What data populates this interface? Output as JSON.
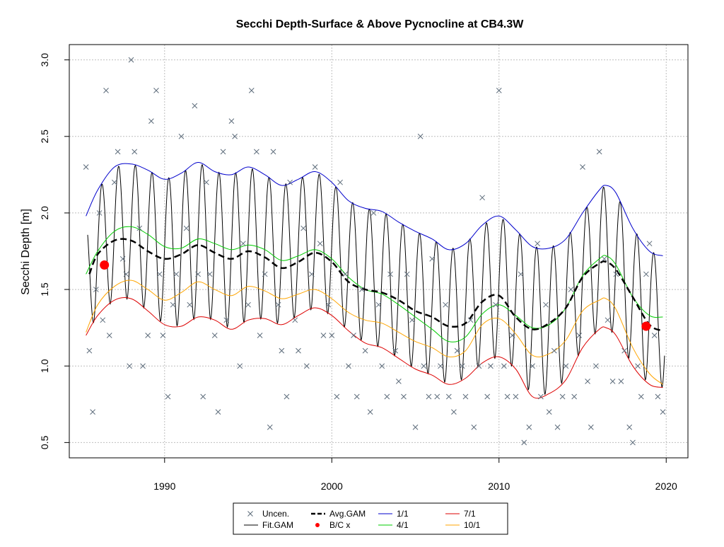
{
  "chart_data": {
    "type": "line",
    "title": "Secchi Depth-Surface & Above Pycnocline at CB4.3W",
    "xlabel": "",
    "ylabel": "Secchi Depth [m]",
    "xlim": [
      1984.3,
      2021.3
    ],
    "ylim": [
      0.4,
      3.1
    ],
    "grid": true,
    "legend_position": "bottom-center",
    "x_ticks": [
      {
        "value": 1990,
        "label": "1990"
      },
      {
        "value": 2000,
        "label": "2000"
      },
      {
        "value": 2010,
        "label": "2010"
      },
      {
        "value": 2020,
        "label": "2020"
      }
    ],
    "y_ticks": [
      {
        "value": 0.5,
        "label": "0.5"
      },
      {
        "value": 1.0,
        "label": "1.0"
      },
      {
        "value": 1.5,
        "label": "1.5"
      },
      {
        "value": 2.0,
        "label": "2.0"
      },
      {
        "value": 2.5,
        "label": "2.5"
      },
      {
        "value": 3.0,
        "label": "3.0"
      }
    ],
    "legend": [
      {
        "label": "Uncen.",
        "key": "uncen"
      },
      {
        "label": "Fit.GAM",
        "key": "fit"
      },
      {
        "label": "Avg.GAM",
        "key": "avg"
      },
      {
        "label": "B/C x",
        "key": "bc"
      },
      {
        "label": "1/1",
        "key": "c1"
      },
      {
        "label": "4/1",
        "key": "c4"
      },
      {
        "label": "7/1",
        "key": "c7"
      },
      {
        "label": "10/1",
        "key": "c10"
      }
    ],
    "colors": {
      "uncen": "#5c6b7a",
      "fit": "#000000",
      "avg": "#000000",
      "bc": "#ff0000",
      "c1": "#0000cc",
      "c4": "#00cc00",
      "c7": "#dd0000",
      "c10": "#ffa500",
      "grid": "#bebebe"
    },
    "series": [
      {
        "name": "1/1",
        "key": "c1",
        "x": [
          1985.3,
          1986,
          1987,
          1988,
          1989,
          1990,
          1991,
          1992,
          1993,
          1994,
          1995,
          1996,
          1997,
          1998,
          1999,
          2000,
          2001,
          2002,
          2003,
          2004,
          2005,
          2006,
          2007,
          2008,
          2009,
          2010,
          2011,
          2012,
          2013,
          2014,
          2015,
          2016,
          2016.4,
          2017,
          2018,
          2019,
          2019.8
        ],
        "y": [
          1.98,
          2.15,
          2.3,
          2.32,
          2.28,
          2.22,
          2.26,
          2.33,
          2.27,
          2.25,
          2.3,
          2.25,
          2.18,
          2.22,
          2.27,
          2.2,
          2.08,
          2.03,
          2.01,
          1.94,
          1.88,
          1.83,
          1.76,
          1.8,
          1.92,
          1.98,
          1.89,
          1.78,
          1.77,
          1.83,
          2.0,
          2.15,
          2.18,
          2.13,
          1.9,
          1.75,
          1.72
        ]
      },
      {
        "name": "4/1",
        "key": "c4",
        "x": [
          1985.3,
          1986,
          1987,
          1988,
          1989,
          1990,
          1991,
          1992,
          1993,
          1994,
          1995,
          1996,
          1997,
          1998,
          1999,
          2000,
          2001,
          2002,
          2003,
          2004,
          2005,
          2006,
          2007,
          2008,
          2009,
          2010,
          2011,
          2012,
          2013,
          2014,
          2015,
          2016,
          2016.4,
          2017,
          2018,
          2019,
          2019.8
        ],
        "y": [
          1.6,
          1.75,
          1.88,
          1.91,
          1.86,
          1.78,
          1.77,
          1.83,
          1.8,
          1.76,
          1.79,
          1.76,
          1.69,
          1.72,
          1.76,
          1.7,
          1.58,
          1.5,
          1.47,
          1.4,
          1.32,
          1.24,
          1.16,
          1.19,
          1.34,
          1.4,
          1.33,
          1.25,
          1.27,
          1.38,
          1.59,
          1.7,
          1.72,
          1.66,
          1.45,
          1.33,
          1.32
        ]
      },
      {
        "name": "7/1",
        "key": "c7",
        "x": [
          1985.3,
          1986,
          1987,
          1988,
          1989,
          1990,
          1991,
          1992,
          1993,
          1994,
          1995,
          1996,
          1997,
          1998,
          1999,
          2000,
          2001,
          2002,
          2003,
          2004,
          2005,
          2006,
          2007,
          2008,
          2009,
          2010,
          2011,
          2012,
          2013,
          2014,
          2015,
          2016,
          2016.4,
          2017,
          2018,
          2019,
          2019.8
        ],
        "y": [
          1.2,
          1.33,
          1.43,
          1.44,
          1.36,
          1.27,
          1.26,
          1.32,
          1.3,
          1.24,
          1.3,
          1.31,
          1.27,
          1.33,
          1.38,
          1.33,
          1.23,
          1.15,
          1.12,
          1.05,
          0.98,
          0.94,
          0.88,
          0.92,
          1.02,
          1.06,
          0.98,
          0.8,
          0.82,
          0.91,
          1.12,
          1.24,
          1.25,
          1.2,
          1.0,
          0.88,
          0.86
        ]
      },
      {
        "name": "10/1",
        "key": "c10",
        "x": [
          1985.3,
          1986,
          1987,
          1988,
          1989,
          1990,
          1991,
          1992,
          1993,
          1994,
          1995,
          1996,
          1997,
          1998,
          1999,
          2000,
          2001,
          2002,
          2003,
          2004,
          2005,
          2006,
          2007,
          2008,
          2009,
          2010,
          2011,
          2012,
          2013,
          2014,
          2015,
          2016,
          2016.4,
          2017,
          2018,
          2019,
          2019.8
        ],
        "y": [
          1.22,
          1.4,
          1.52,
          1.56,
          1.5,
          1.43,
          1.48,
          1.55,
          1.5,
          1.46,
          1.52,
          1.49,
          1.44,
          1.47,
          1.5,
          1.44,
          1.35,
          1.3,
          1.28,
          1.22,
          1.16,
          1.12,
          1.06,
          1.1,
          1.27,
          1.31,
          1.21,
          1.07,
          1.08,
          1.17,
          1.36,
          1.43,
          1.44,
          1.37,
          1.12,
          0.95,
          0.88
        ]
      },
      {
        "name": "Avg.GAM",
        "key": "avg",
        "x": [
          1985.5,
          1986,
          1987,
          1988,
          1989,
          1990,
          1991,
          1992,
          1993,
          1994,
          1995,
          1996,
          1997,
          1998,
          1999,
          2000,
          2001,
          2002,
          2003,
          2004,
          2005,
          2006,
          2007,
          2008,
          2009,
          2010,
          2011,
          2012,
          2013,
          2014,
          2015,
          2016,
          2016.4,
          2017,
          2018,
          2019,
          2019.8
        ],
        "y": [
          1.6,
          1.73,
          1.82,
          1.82,
          1.75,
          1.7,
          1.73,
          1.79,
          1.74,
          1.7,
          1.75,
          1.71,
          1.64,
          1.68,
          1.74,
          1.68,
          1.55,
          1.5,
          1.48,
          1.43,
          1.36,
          1.32,
          1.26,
          1.28,
          1.42,
          1.46,
          1.32,
          1.24,
          1.28,
          1.38,
          1.58,
          1.67,
          1.68,
          1.63,
          1.45,
          1.27,
          1.23
        ]
      }
    ],
    "fit_gam": {
      "name": "Fit.GAM",
      "key": "fit",
      "description_of_shape": "seasonal oscillation between 1/1 upper envelope and 7/1 lower envelope",
      "x_start": 1985.4,
      "x_end": 2019.9
    },
    "bc_points": {
      "name": "B/C x",
      "key": "bc",
      "x": [
        1986.4,
        2018.8
      ],
      "y": [
        1.66,
        1.26
      ]
    },
    "uncen_points": {
      "name": "Uncen.",
      "key": "uncen",
      "x": [
        1985.3,
        1985.5,
        1985.7,
        1985.9,
        1986.1,
        1986.3,
        1986.5,
        1986.7,
        1987.0,
        1987.2,
        1987.5,
        1987.7,
        1987.9,
        1988.0,
        1988.2,
        1988.5,
        1988.7,
        1989.0,
        1989.2,
        1989.5,
        1989.7,
        1989.9,
        1990.2,
        1990.5,
        1990.7,
        1991.0,
        1991.3,
        1991.5,
        1991.8,
        1992.0,
        1992.3,
        1992.5,
        1992.7,
        1993.0,
        1993.2,
        1993.5,
        1993.7,
        1994.0,
        1994.2,
        1994.5,
        1994.7,
        1995.0,
        1995.2,
        1995.5,
        1995.7,
        1996.0,
        1996.3,
        1996.5,
        1996.8,
        1997.0,
        1997.3,
        1997.5,
        1997.8,
        1998.0,
        1998.3,
        1998.5,
        1998.8,
        1999.0,
        1999.3,
        1999.5,
        1999.8,
        2000.0,
        2000.3,
        2000.5,
        2000.8,
        2001.0,
        2001.3,
        2001.5,
        2001.8,
        2002.0,
        2002.3,
        2002.5,
        2002.8,
        2003.0,
        2003.3,
        2003.5,
        2003.8,
        2004.0,
        2004.3,
        2004.5,
        2004.8,
        2005.0,
        2005.3,
        2005.5,
        2005.8,
        2006.0,
        2006.3,
        2006.5,
        2006.8,
        2007.0,
        2007.3,
        2007.5,
        2007.8,
        2008.0,
        2008.3,
        2008.5,
        2008.8,
        2009.0,
        2009.3,
        2009.5,
        2009.8,
        2010.0,
        2010.3,
        2010.5,
        2010.8,
        2011.0,
        2011.3,
        2011.5,
        2011.8,
        2012.0,
        2012.3,
        2012.5,
        2012.8,
        2013.0,
        2013.3,
        2013.5,
        2013.8,
        2014.0,
        2014.3,
        2014.5,
        2014.8,
        2015.0,
        2015.3,
        2015.5,
        2015.8,
        2016.0,
        2016.3,
        2016.5,
        2016.8,
        2017.0,
        2017.3,
        2017.5,
        2017.8,
        2018.0,
        2018.3,
        2018.5,
        2018.8,
        2019.0,
        2019.3,
        2019.5,
        2019.8
      ],
      "y": [
        2.3,
        1.1,
        0.7,
        1.5,
        2.0,
        1.3,
        2.8,
        1.2,
        2.2,
        2.4,
        1.7,
        1.6,
        1.0,
        3.0,
        2.4,
        1.9,
        1.0,
        1.2,
        2.6,
        2.8,
        1.6,
        1.2,
        0.8,
        1.4,
        1.6,
        2.5,
        1.9,
        1.4,
        2.7,
        1.6,
        0.8,
        2.2,
        1.6,
        1.2,
        0.7,
        2.4,
        1.3,
        2.6,
        2.5,
        1.0,
        1.8,
        1.4,
        2.8,
        2.4,
        1.2,
        1.6,
        0.6,
        2.4,
        1.4,
        1.1,
        0.8,
        2.2,
        1.3,
        1.1,
        1.9,
        1.0,
        1.6,
        2.3,
        1.8,
        1.2,
        1.4,
        1.2,
        0.8,
        2.2,
        1.6,
        1.0,
        1.2,
        0.8,
        1.5,
        1.1,
        0.7,
        2.0,
        1.4,
        1.0,
        0.8,
        1.6,
        1.1,
        0.9,
        0.8,
        1.6,
        1.3,
        0.6,
        2.5,
        1.0,
        0.8,
        1.7,
        0.8,
        1.0,
        1.4,
        0.8,
        0.7,
        1.1,
        1.0,
        0.8,
        1.3,
        0.6,
        1.0,
        2.1,
        0.8,
        1.0,
        1.4,
        2.8,
        1.0,
        0.8,
        1.2,
        0.8,
        1.6,
        0.5,
        0.6,
        1.0,
        1.8,
        0.8,
        1.4,
        0.7,
        1.1,
        0.6,
        0.8,
        1.0,
        1.5,
        0.8,
        1.2,
        2.3,
        0.9,
        0.6,
        1.0,
        2.4,
        1.7,
        1.3,
        0.9,
        1.6,
        0.9,
        1.1,
        0.6,
        0.5,
        1.0,
        0.8,
        1.6,
        1.8,
        1.2,
        0.8,
        0.7
      ]
    }
  }
}
